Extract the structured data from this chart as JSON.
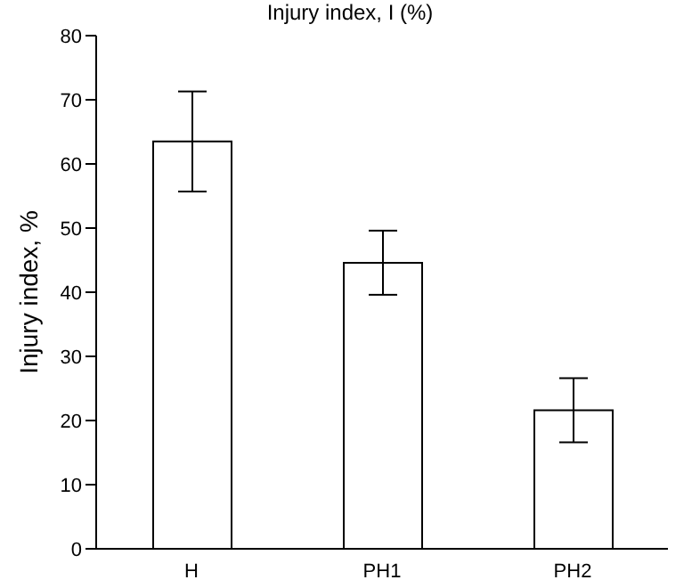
{
  "chart_data": {
    "type": "bar",
    "title": "Injury index, I (%)",
    "ylabel": "Injury index, %",
    "categories": [
      "H",
      "PH1",
      "PH2"
    ],
    "values": [
      63.5,
      44.6,
      21.6
    ],
    "errors": [
      7.8,
      5,
      5
    ],
    "color": "#ffffff",
    "ylim": [
      0,
      80
    ],
    "yticks": [
      0,
      10,
      20,
      30,
      40,
      50,
      60,
      70,
      80
    ],
    "grid": false
  }
}
